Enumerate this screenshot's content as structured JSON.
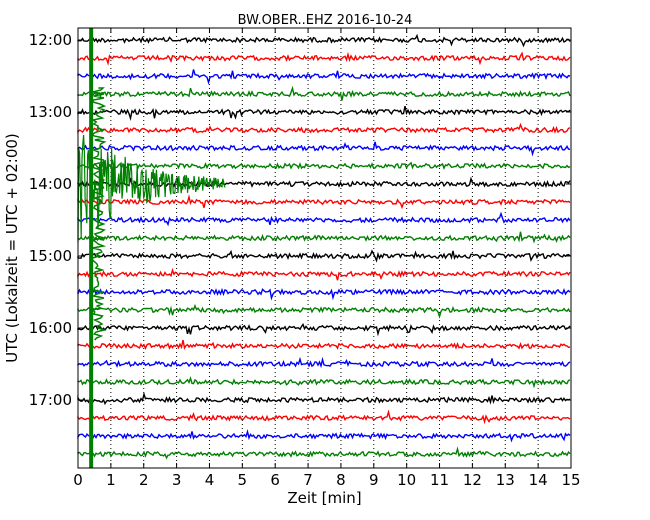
{
  "chart_data": {
    "type": "line",
    "title": "BW.OBER..EHZ 2016-10-24",
    "xlabel": "Zeit  [min]",
    "ylabel": "UTC (Lokalzeit = UTC + 02:00)",
    "xlim": [
      0,
      15
    ],
    "x_ticks": [
      "0",
      "1",
      "2",
      "3",
      "4",
      "5",
      "6",
      "7",
      "8",
      "9",
      "10",
      "11",
      "12",
      "13",
      "14",
      "15"
    ],
    "y_ticks": [
      "12:00",
      "13:00",
      "14:00",
      "15:00",
      "16:00",
      "17:00"
    ],
    "grid": "vertical dotted",
    "trace_interval_min": 15,
    "trace_start": "12:00",
    "trace_count": 24,
    "trace_colors": [
      "#000000",
      "#ff0000",
      "#0000ff",
      "#008000"
    ],
    "event": {
      "trace_start": "14:00",
      "onset_min": 0.0,
      "duration_min": 4.5,
      "series_color": "#008000"
    }
  }
}
